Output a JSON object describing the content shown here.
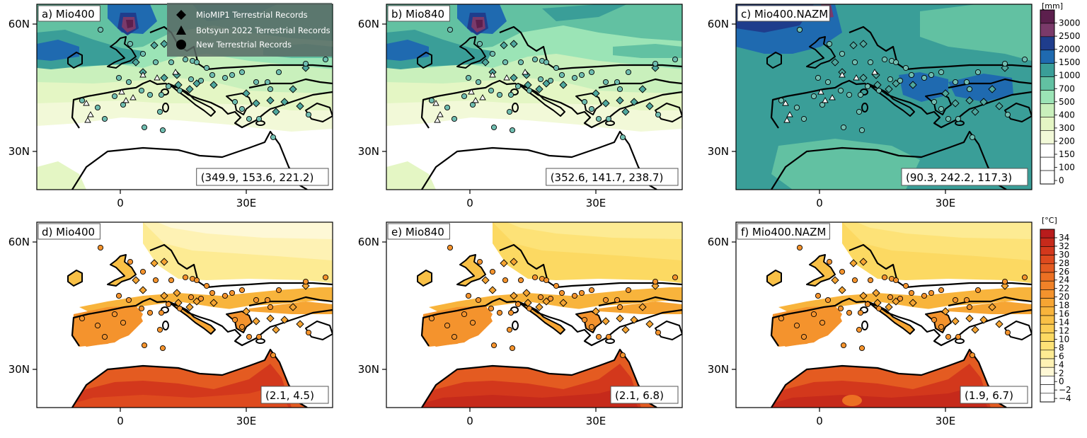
{
  "panels": [
    {
      "label": "a) Mio400",
      "stats": "(349.9, 153.6, 221.2)",
      "field": "precip",
      "scenario": "mio400"
    },
    {
      "label": "b) Mio840",
      "stats": "(352.6, 141.7, 238.7)",
      "field": "precip",
      "scenario": "mio840"
    },
    {
      "label": "c) Mio400.NAZM",
      "stats": "(90.3, 242.2, 117.3)",
      "field": "precip",
      "scenario": "nazm"
    },
    {
      "label": "d) Mio400",
      "stats": "(2.1, 4.5)",
      "field": "temp",
      "scenario": "mio400"
    },
    {
      "label": "e) Mio840",
      "stats": "(2.1, 6.8)",
      "field": "temp",
      "scenario": "mio840"
    },
    {
      "label": "f) Mio400.NAZM",
      "stats": "(1.9, 6.7)",
      "field": "temp",
      "scenario": "nazm"
    }
  ],
  "axes": {
    "lat_ticks": [
      "60N",
      "30N"
    ],
    "lon_ticks": [
      "0",
      "30E"
    ]
  },
  "legend": {
    "entries": [
      {
        "symbol": "diamond",
        "label": "MioMIP1 Terrestrial Records"
      },
      {
        "symbol": "triangle",
        "label": "Botsyun 2022 Terrestrial Records"
      },
      {
        "symbol": "circle",
        "label": "New Terrestrial Records"
      }
    ]
  },
  "precip_colorbar": {
    "unit": "[mm]",
    "levels": [
      "3000",
      "2500",
      "2000",
      "1500",
      "1000",
      "700",
      "500",
      "400",
      "300",
      "200",
      "150",
      "100",
      "0"
    ],
    "colors": [
      "#5c1f4d",
      "#7a3a6a",
      "#1f3d8c",
      "#1f6ab0",
      "#3a9e98",
      "#62c1a2",
      "#9be4b6",
      "#c9f0bc",
      "#e4f6c4",
      "#f2f9d8",
      "#ffffff",
      "#ffffff",
      "#ffffff"
    ]
  },
  "temp_colorbar": {
    "unit": "[°C]",
    "levels": [
      "34",
      "32",
      "30",
      "28",
      "26",
      "24",
      "22",
      "20",
      "18",
      "16",
      "14",
      "12",
      "10",
      "8",
      "6",
      "4",
      "2",
      "0",
      "−2",
      "−4"
    ],
    "colors": [
      "#b81c1c",
      "#c62a1b",
      "#d3381c",
      "#de4a1e",
      "#e45b21",
      "#ec7023",
      "#f08228",
      "#f4932d",
      "#f6a533",
      "#f8b43c",
      "#f9c046",
      "#fbcd55",
      "#fcd962",
      "#fde277",
      "#fdeb93",
      "#fef2b4",
      "#fef8d6",
      "#ffffff",
      "#ffffff",
      "#ffffff"
    ]
  },
  "colors": {
    "sea": "#ffffff",
    "coast": "#000000",
    "diamond": "#4fa89e",
    "circle": "#6fbdb0",
    "triangle": "#ffffff"
  }
}
